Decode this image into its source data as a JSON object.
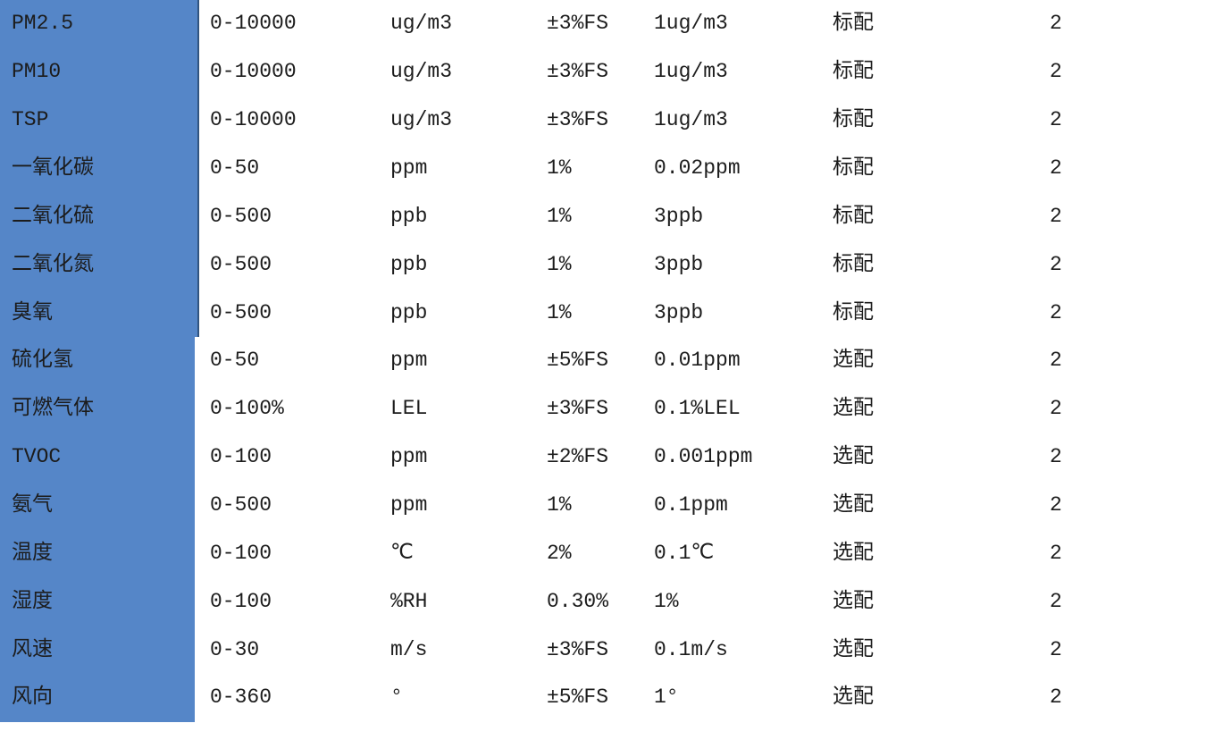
{
  "colors": {
    "row_header_bg": "#5586C8",
    "row_header_edge": "#31547f",
    "text": "#1c1c1c",
    "background": "#ffffff"
  },
  "table": {
    "description": "sensor-spec-table",
    "columns": [
      "parameter",
      "range",
      "unit",
      "accuracy",
      "resolution",
      "config",
      "quantity"
    ],
    "rows": [
      {
        "parameter": "PM2.5",
        "range": "0-10000",
        "unit": "ug/m3",
        "accuracy": "±3%FS",
        "resolution": "1ug/m3",
        "config": "标配",
        "quantity": "2"
      },
      {
        "parameter": "PM10",
        "range": "0-10000",
        "unit": "ug/m3",
        "accuracy": "±3%FS",
        "resolution": "1ug/m3",
        "config": "标配",
        "quantity": "2"
      },
      {
        "parameter": "TSP",
        "range": "0-10000",
        "unit": "ug/m3",
        "accuracy": "±3%FS",
        "resolution": "1ug/m3",
        "config": "标配",
        "quantity": "2"
      },
      {
        "parameter": "一氧化碳",
        "range": "0-50",
        "unit": "ppm",
        "accuracy": "1%",
        "resolution": "0.02ppm",
        "config": "标配",
        "quantity": "2"
      },
      {
        "parameter": "二氧化硫",
        "range": "0-500",
        "unit": "ppb",
        "accuracy": "1%",
        "resolution": "3ppb",
        "config": "标配",
        "quantity": "2"
      },
      {
        "parameter": "二氧化氮",
        "range": "0-500",
        "unit": "ppb",
        "accuracy": "1%",
        "resolution": "3ppb",
        "config": "标配",
        "quantity": "2"
      },
      {
        "parameter": "臭氧",
        "range": "0-500",
        "unit": "ppb",
        "accuracy": "1%",
        "resolution": "3ppb",
        "config": "标配",
        "quantity": "2"
      },
      {
        "parameter": "硫化氢",
        "range": "0-50",
        "unit": "ppm",
        "accuracy": "±5%FS",
        "resolution": "0.01ppm",
        "config": "选配",
        "quantity": "2"
      },
      {
        "parameter": "可燃气体",
        "range": "0-100%",
        "unit": "LEL",
        "accuracy": "±3%FS",
        "resolution": "0.1%LEL",
        "config": "选配",
        "quantity": "2"
      },
      {
        "parameter": "TVOC",
        "range": "0-100",
        "unit": "ppm",
        "accuracy": "±2%FS",
        "resolution": "0.001ppm",
        "config": "选配",
        "quantity": "2"
      },
      {
        "parameter": "氨气",
        "range": "0-500",
        "unit": "ppm",
        "accuracy": "1%",
        "resolution": "0.1ppm",
        "config": "选配",
        "quantity": "2"
      },
      {
        "parameter": "温度",
        "range": "0-100",
        "unit": "℃",
        "accuracy": "2%",
        "resolution": "0.1℃",
        "config": "选配",
        "quantity": "2"
      },
      {
        "parameter": "湿度",
        "range": "0-100",
        "unit": "%RH",
        "accuracy": "0.30%",
        "resolution": "1%",
        "config": "选配",
        "quantity": "2"
      },
      {
        "parameter": "风速",
        "range": "0-30",
        "unit": "m/s",
        "accuracy": "±3%FS",
        "resolution": "0.1m/s",
        "config": "选配",
        "quantity": "2"
      },
      {
        "parameter": "风向",
        "range": "0-360",
        "unit": "°",
        "accuracy": "±5%FS",
        "resolution": "1°",
        "config": "选配",
        "quantity": "2"
      }
    ]
  }
}
